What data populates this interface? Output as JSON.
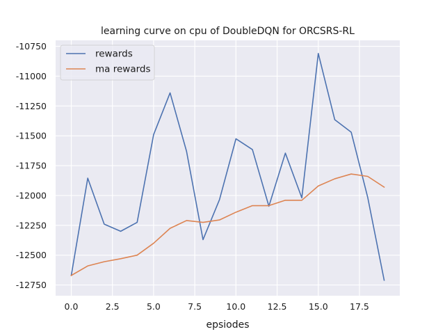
{
  "chart_data": {
    "type": "line",
    "title": "learning curve on cpu of DoubleDQN for ORCSRS-RL",
    "xlabel": "epsiodes",
    "ylabel": "",
    "xlim": [
      -0.95,
      19.95
    ],
    "ylim": [
      -12840,
      -10700
    ],
    "xticks": [
      0,
      2.5,
      5,
      7.5,
      10,
      12.5,
      15,
      17.5
    ],
    "xtick_labels": [
      "0.0",
      "2.5",
      "5.0",
      "7.5",
      "10.0",
      "12.5",
      "15.0",
      "17.5"
    ],
    "yticks": [
      -12750,
      -12500,
      -12250,
      -12000,
      -11750,
      -11500,
      -11250,
      -11000,
      -10750
    ],
    "ytick_labels": [
      "-12750",
      "-12500",
      "-12250",
      "-12000",
      "-11750",
      "-11500",
      "-11250",
      "-11000",
      "-10750"
    ],
    "grid": true,
    "legend_position": "top-left",
    "x": [
      0,
      1,
      2,
      3,
      4,
      5,
      6,
      7,
      8,
      9,
      10,
      11,
      12,
      13,
      14,
      15,
      16,
      17,
      18,
      19
    ],
    "series": [
      {
        "name": "rewards",
        "color": "#4c72b0",
        "values": [
          -12670,
          -11855,
          -12240,
          -12300,
          -12225,
          -11490,
          -11140,
          -11630,
          -12370,
          -12035,
          -11525,
          -11615,
          -12090,
          -11645,
          -12020,
          -10810,
          -11365,
          -11470,
          -12015,
          -12710
        ]
      },
      {
        "name": "ma rewards",
        "color": "#dd8452",
        "values": [
          -12670,
          -12590,
          -12555,
          -12530,
          -12500,
          -12400,
          -12275,
          -12210,
          -12225,
          -12205,
          -12140,
          -12085,
          -12085,
          -12040,
          -12040,
          -11920,
          -11860,
          -11820,
          -11840,
          -11930
        ]
      }
    ]
  }
}
